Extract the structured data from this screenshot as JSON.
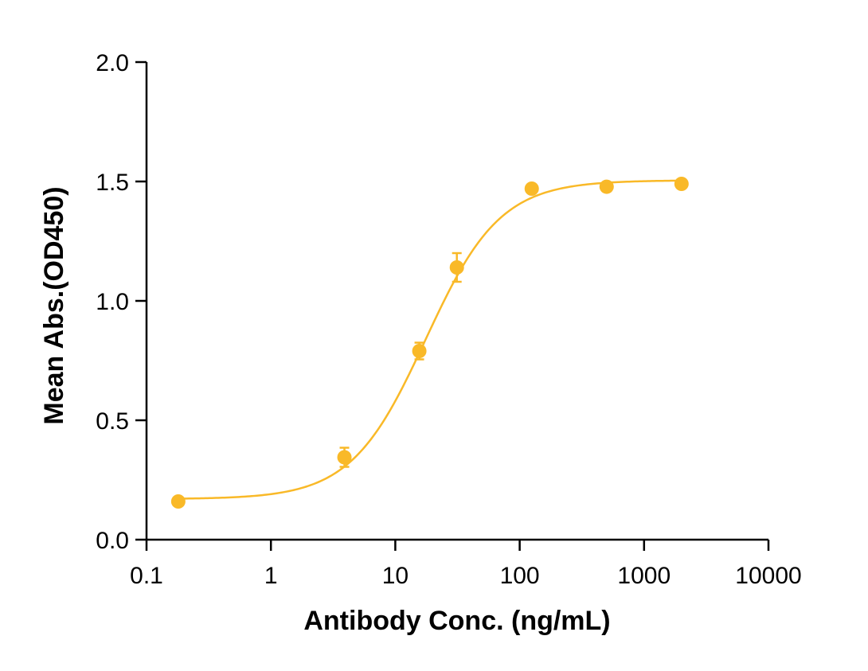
{
  "chart_data": {
    "type": "scatter",
    "title": "",
    "xlabel": "Antibody Conc. (ng/mL)",
    "ylabel": "Mean Abs.(OD450)",
    "x_scale": "log",
    "xlim": [
      0.1,
      10000
    ],
    "ylim": [
      0.0,
      2.0
    ],
    "x_ticks": [
      0.1,
      1,
      10,
      100,
      1000,
      10000
    ],
    "x_tick_labels": [
      "0.1",
      "1",
      "10",
      "100",
      "1000",
      "10000"
    ],
    "y_ticks": [
      0.0,
      0.5,
      1.0,
      1.5,
      2.0
    ],
    "y_tick_labels": [
      "0.0",
      "0.5",
      "1.0",
      "1.5",
      "2.0"
    ],
    "grid": false,
    "color": "#F9B928",
    "series": [
      {
        "x": [
          0.18,
          3.9,
          15.6,
          31.25,
          125,
          500,
          2000
        ],
        "y": [
          0.16,
          0.345,
          0.79,
          1.14,
          1.47,
          1.478,
          1.49
        ],
        "error": [
          0.0,
          0.04,
          0.035,
          0.06,
          0.0,
          0.0,
          0.0
        ]
      }
    ],
    "fit_curve": {
      "model": "4PL",
      "bottom": 0.17,
      "top": 1.505,
      "ec50": 17.5,
      "hill": 1.45
    }
  }
}
